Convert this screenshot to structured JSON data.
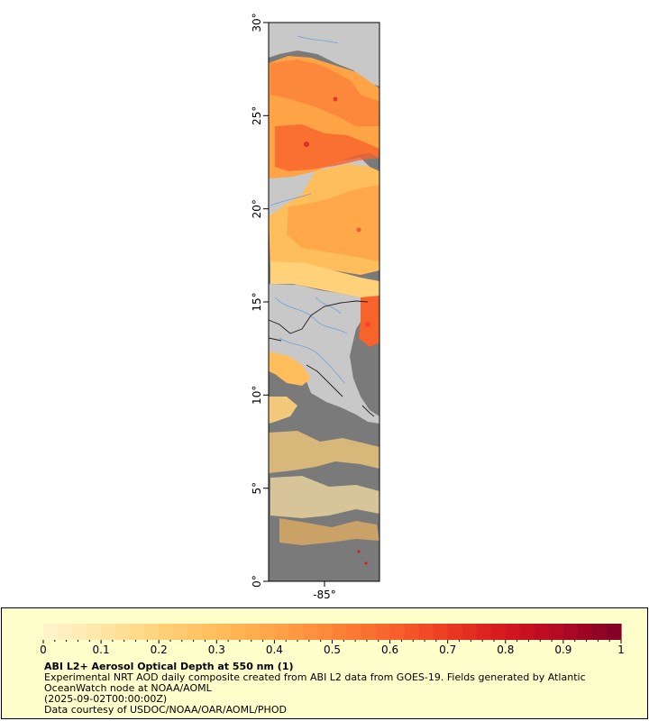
{
  "map": {
    "lat_ticks": [
      "0°",
      "5°",
      "10°",
      "15°",
      "20°",
      "25°",
      "30°"
    ],
    "lon_tick": "-85°",
    "colors": {
      "land": "#c8c8c8",
      "no_data": "#7a7a7a",
      "rivers": "#6f9fd8",
      "borders": "#202020"
    }
  },
  "colorbar": {
    "ticks": [
      "0",
      "0.1",
      "0.2",
      "0.3",
      "0.4",
      "0.5",
      "0.6",
      "0.7",
      "0.8",
      "0.9",
      "1"
    ],
    "colors": [
      "#fff5d0",
      "#ffe6a6",
      "#ffd27a",
      "#ffbd5c",
      "#fea447",
      "#fc853a",
      "#f8632c",
      "#ec3b22",
      "#d5161f",
      "#b00824",
      "#7f0126"
    ]
  },
  "legend": {
    "title": "ABI L2+ Aerosol Optical Depth at 550 nm (1)",
    "line1": "Experimental NRT AOD daily composite created from ABI L2 data from GOES-19. Fields generated by Atlantic OceanWatch node at NOAA/AOML",
    "line2": "(2025-09-02T00:00:00Z)",
    "line3": "Data courtesy of USDOC/NOAA/OAR/AOML/PHOD"
  }
}
